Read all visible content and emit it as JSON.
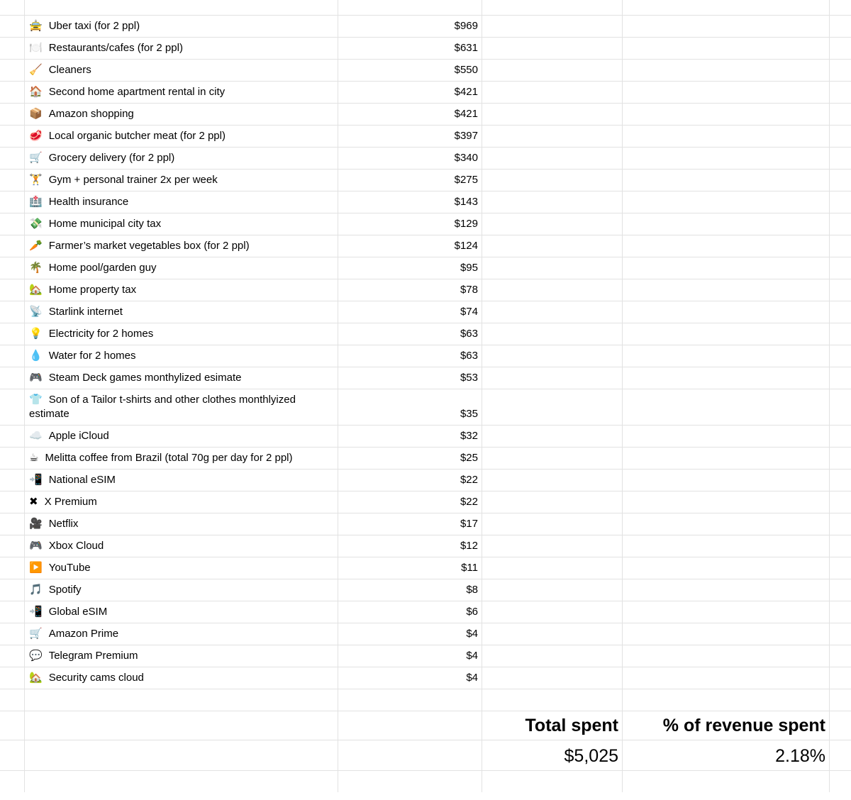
{
  "app": {
    "kind": "spreadsheet-expense-list",
    "colors": {
      "gridline": "#e2e2e2",
      "text": "#000000",
      "background": "#ffffff"
    }
  },
  "items": [
    {
      "icon": "🚖",
      "icon_name": "taxi-icon",
      "label": "Uber taxi (for 2 ppl)",
      "amount": "$969"
    },
    {
      "icon": "🍽️",
      "icon_name": "fork-knife-plate-icon",
      "label": "Restaurants/cafes (for 2 ppl)",
      "amount": "$631"
    },
    {
      "icon": "🧹",
      "icon_name": "broom-icon",
      "label": "Cleaners",
      "amount": "$550"
    },
    {
      "icon": "🏠",
      "icon_name": "house-icon",
      "label": "Second home apartment rental in city",
      "amount": "$421"
    },
    {
      "icon": "📦",
      "icon_name": "package-icon",
      "label": "Amazon shopping",
      "amount": "$421"
    },
    {
      "icon": "🥩",
      "icon_name": "meat-icon",
      "label": "Local organic butcher meat (for 2 ppl)",
      "amount": "$397"
    },
    {
      "icon": "🛒",
      "icon_name": "shopping-cart-icon",
      "label": "Grocery delivery (for 2 ppl)",
      "amount": "$340"
    },
    {
      "icon": "🏋️",
      "icon_name": "weightlifter-icon",
      "label": "Gym + personal trainer 2x per week",
      "amount": "$275"
    },
    {
      "icon": "🏥",
      "icon_name": "hospital-icon",
      "label": "Health insurance",
      "amount": "$143"
    },
    {
      "icon": "💸",
      "icon_name": "money-with-wings-icon",
      "label": "Home municipal city tax",
      "amount": "$129"
    },
    {
      "icon": "🥕",
      "icon_name": "carrot-icon",
      "label": "Farmer’s market vegetables box (for 2 ppl)",
      "amount": "$124"
    },
    {
      "icon": "🌴",
      "icon_name": "palm-tree-icon",
      "label": "Home pool/garden guy",
      "amount": "$95"
    },
    {
      "icon": "🏡",
      "icon_name": "house-garden-icon",
      "label": "Home property tax",
      "amount": "$78"
    },
    {
      "icon": "📡",
      "icon_name": "satellite-dish-icon",
      "label": "Starlink internet",
      "amount": "$74"
    },
    {
      "icon": "💡",
      "icon_name": "light-bulb-icon",
      "label": "Electricity for 2 homes",
      "amount": "$63"
    },
    {
      "icon": "💧",
      "icon_name": "water-drop-icon",
      "label": "Water for 2 homes",
      "amount": "$63"
    },
    {
      "icon": "🎮",
      "icon_name": "game-controller-icon",
      "label": "Steam Deck games monthylized esimate",
      "amount": "$53"
    },
    {
      "icon": "👕",
      "icon_name": "tshirt-icon",
      "label": "Son of a Tailor t-shirts and other clothes monthlyized estimate",
      "amount": "$35"
    },
    {
      "icon": "☁️",
      "icon_name": "cloud-icon",
      "label": "Apple iCloud",
      "amount": "$32"
    },
    {
      "icon": "☕",
      "icon_name": "coffee-icon",
      "label": "Melitta coffee from Brazil (total 70g per day for 2 ppl)",
      "amount": "$25"
    },
    {
      "icon": "📲",
      "icon_name": "phone-arrow-icon",
      "label": "National eSIM",
      "amount": "$22"
    },
    {
      "icon": "✖",
      "icon_name": "x-icon",
      "label": "X Premium",
      "amount": "$22"
    },
    {
      "icon": "🎥",
      "icon_name": "movie-camera-icon",
      "label": "Netflix",
      "amount": "$17"
    },
    {
      "icon": "🎮",
      "icon_name": "game-controller-icon",
      "label": "Xbox Cloud",
      "amount": "$12"
    },
    {
      "icon": "▶️",
      "icon_name": "play-button-icon",
      "label": "YouTube",
      "amount": "$11"
    },
    {
      "icon": "🎵",
      "icon_name": "music-note-icon",
      "label": "Spotify",
      "amount": "$8"
    },
    {
      "icon": "📲",
      "icon_name": "phone-arrow-icon",
      "label": "Global eSIM",
      "amount": "$6"
    },
    {
      "icon": "🛒",
      "icon_name": "shopping-cart-icon",
      "label": "Amazon Prime",
      "amount": "$4"
    },
    {
      "icon": "💬",
      "icon_name": "speech-balloon-icon",
      "label": "Telegram Premium",
      "amount": "$4"
    },
    {
      "icon": "🏡",
      "icon_name": "house-garden-icon",
      "label": "Security cams cloud",
      "amount": "$4"
    }
  ],
  "totals": {
    "total_label": "Total spent",
    "total_value": "$5,025",
    "percent_label": "% of revenue spent",
    "percent_value": "2.18%"
  }
}
